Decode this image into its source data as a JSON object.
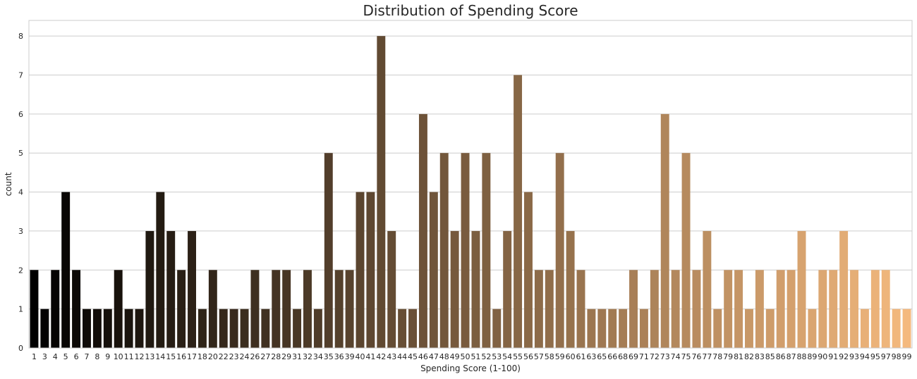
{
  "chart_data": {
    "type": "bar",
    "title": "Distribution of Spending Score",
    "xlabel": "Spending Score (1-100)",
    "ylabel": "count",
    "ylim": [
      0,
      8.4
    ],
    "yticks": [
      0,
      1,
      2,
      3,
      4,
      5,
      6,
      7,
      8
    ],
    "grid": "horizontal",
    "palette": [
      "#000000",
      "#f4b97e"
    ],
    "categories": [
      "1",
      "3",
      "4",
      "5",
      "6",
      "7",
      "8",
      "9",
      "10",
      "11",
      "12",
      "13",
      "14",
      "15",
      "16",
      "17",
      "18",
      "20",
      "22",
      "23",
      "24",
      "26",
      "27",
      "28",
      "29",
      "31",
      "32",
      "34",
      "35",
      "36",
      "39",
      "40",
      "41",
      "42",
      "43",
      "44",
      "45",
      "46",
      "47",
      "48",
      "49",
      "50",
      "51",
      "52",
      "53",
      "54",
      "55",
      "56",
      "57",
      "58",
      "59",
      "60",
      "61",
      "63",
      "65",
      "66",
      "68",
      "69",
      "71",
      "72",
      "73",
      "74",
      "75",
      "76",
      "77",
      "78",
      "79",
      "81",
      "82",
      "83",
      "85",
      "86",
      "87",
      "88",
      "89",
      "90",
      "91",
      "92",
      "93",
      "94",
      "95",
      "97",
      "98",
      "99"
    ],
    "values": [
      2,
      1,
      2,
      4,
      2,
      1,
      1,
      1,
      2,
      1,
      1,
      3,
      4,
      3,
      2,
      3,
      1,
      2,
      1,
      1,
      1,
      2,
      1,
      2,
      2,
      1,
      2,
      1,
      5,
      2,
      2,
      4,
      4,
      8,
      3,
      1,
      1,
      6,
      4,
      5,
      3,
      5,
      3,
      5,
      1,
      3,
      7,
      4,
      2,
      2,
      5,
      3,
      2,
      1,
      1,
      1,
      1,
      2,
      1,
      2,
      6,
      2,
      5,
      2,
      3,
      1,
      2,
      2,
      1,
      2,
      1,
      2,
      2,
      3,
      1,
      2,
      2,
      3,
      2,
      1,
      2,
      2,
      1,
      1
    ]
  }
}
